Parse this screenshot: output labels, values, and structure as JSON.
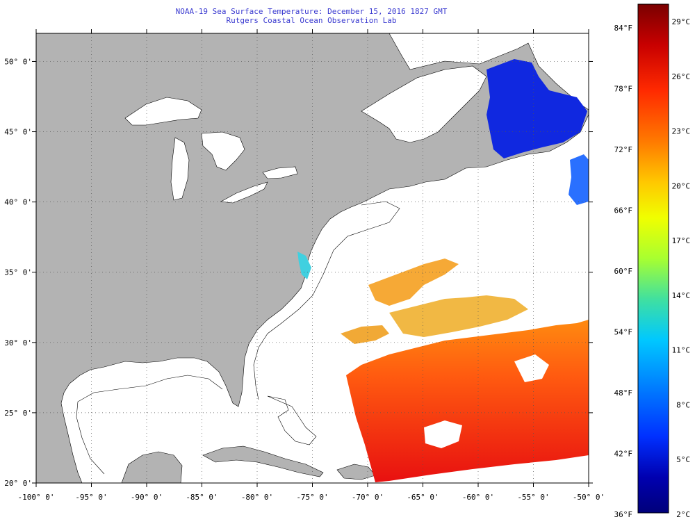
{
  "header": {
    "title": "NOAA-19 Sea Surface Temperature:  December 15, 2016 1827 GMT",
    "subtitle": "Rutgers Coastal Ocean Observation Lab"
  },
  "map": {
    "lon_range": [
      -100,
      -50
    ],
    "lat_range": [
      20,
      52
    ],
    "lon_ticks": [
      "-100° 0'",
      "-95° 0'",
      "-90° 0'",
      "-85° 0'",
      "-80° 0'",
      "-75° 0'",
      "-70° 0'",
      "-65° 0'",
      "-60° 0'",
      "-55° 0'",
      "-50° 0'"
    ],
    "lat_ticks": [
      "20° 0'",
      "25° 0'",
      "30° 0'",
      "35° 0'",
      "40° 0'",
      "45° 0'",
      "50° 0'"
    ],
    "land_color": "#b3b3b3",
    "ocean_color": "#ffffff",
    "grid": "dotted"
  },
  "colorbar": {
    "f_labels": [
      "84°F",
      "78°F",
      "72°F",
      "66°F",
      "60°F",
      "54°F",
      "48°F",
      "42°F",
      "36°F"
    ],
    "c_labels": [
      "29°C",
      "26°C",
      "23°C",
      "20°C",
      "17°C",
      "14°C",
      "11°C",
      "8°C",
      "5°C",
      "2°C"
    ],
    "stops": [
      "#7a0000",
      "#c80000",
      "#ff2a00",
      "#ff7a00",
      "#ffc800",
      "#f0ff00",
      "#a8ff30",
      "#40e0a0",
      "#00c8ff",
      "#0080ff",
      "#0030ff",
      "#0000b0",
      "#00007a"
    ]
  }
}
